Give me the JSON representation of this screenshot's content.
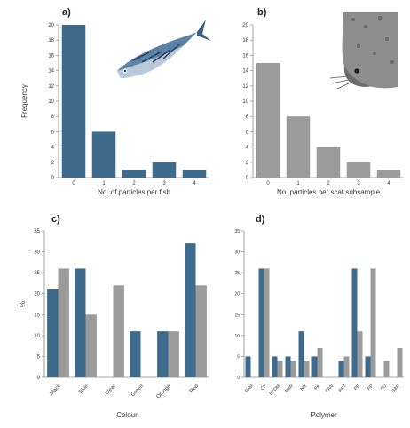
{
  "colors": {
    "blue": "#3e6a8c",
    "gray": "#9b9b9b",
    "axis": "#8a8a8a",
    "text": "#333333"
  },
  "illustrations": {
    "a": "mackerel-fish",
    "b": "seal-head"
  },
  "chart_data": [
    {
      "panel": "a)",
      "type": "bar",
      "categories": [
        "0",
        "1",
        "2",
        "3",
        "4"
      ],
      "values": [
        20,
        6,
        1,
        2,
        1
      ],
      "xlabel": "No. of particles per fish",
      "ylabel": "Frequency",
      "ylim": [
        0,
        20
      ],
      "yticks": [
        0,
        2,
        4,
        6,
        8,
        10,
        12,
        14,
        16,
        18,
        20
      ],
      "color": "blue",
      "grid": false
    },
    {
      "panel": "b)",
      "type": "bar",
      "categories": [
        "0",
        "1",
        "2",
        "3",
        "4"
      ],
      "values": [
        15,
        8,
        4,
        2,
        1
      ],
      "xlabel": "No. particles per scat subsample",
      "ylabel": "",
      "ylim": [
        0,
        20
      ],
      "yticks": [
        0,
        2,
        4,
        6,
        8,
        10,
        12,
        14,
        16,
        18,
        20
      ],
      "color": "gray",
      "grid": false
    },
    {
      "panel": "c)",
      "type": "bar",
      "categories": [
        "Black",
        "Blue",
        "Clear",
        "Green",
        "Orange",
        "Red"
      ],
      "series": [
        {
          "values": [
            21,
            26,
            0,
            11,
            11,
            32
          ],
          "color": "blue"
        },
        {
          "values": [
            26,
            15,
            22,
            0,
            11,
            22
          ],
          "color": "gray"
        }
      ],
      "xlabel": "Colour",
      "ylabel": "%",
      "ylim": [
        0,
        35
      ],
      "yticks": [
        0,
        5,
        10,
        15,
        20,
        25,
        30,
        35
      ],
      "grid": false
    },
    {
      "panel": "d)",
      "type": "bar",
      "categories": [
        "PAM",
        "CP",
        "EPDM",
        "NBR",
        "NR",
        "PA",
        "PAN",
        "PET",
        "PE",
        "PP",
        "PU",
        "SBR"
      ],
      "series": [
        {
          "values": [
            5,
            26,
            5,
            5,
            11,
            5,
            0,
            4,
            26,
            5,
            0,
            0
          ],
          "color": "blue"
        },
        {
          "values": [
            0,
            26,
            4,
            4,
            4,
            7,
            0,
            5,
            11,
            26,
            4,
            7
          ],
          "color": "gray"
        }
      ],
      "xlabel": "Polymer",
      "ylabel": "",
      "ylim": [
        0,
        35
      ],
      "yticks": [
        0,
        5,
        10,
        15,
        20,
        25,
        30,
        35
      ],
      "grid": false
    }
  ]
}
